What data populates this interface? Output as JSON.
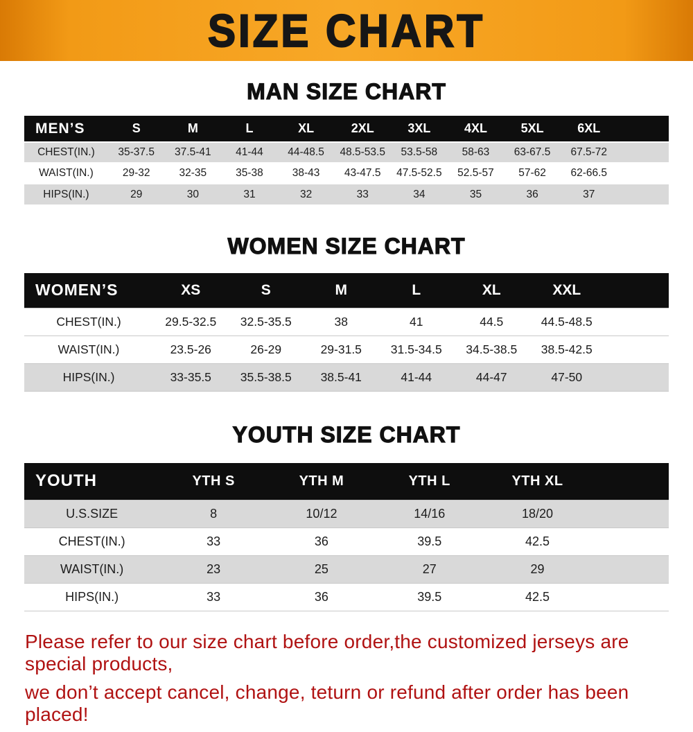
{
  "banner": {
    "title": "SIZE CHART",
    "bg_color": "#f29a16",
    "text_color": "#161616"
  },
  "chart_data": [
    {
      "type": "table",
      "title": "MAN SIZE CHART",
      "corner_label": "MEN’S",
      "columns": [
        "S",
        "M",
        "L",
        "XL",
        "2XL",
        "3XL",
        "4XL",
        "5XL",
        "6XL"
      ],
      "rows": [
        {
          "label": "CHEST(IN.)",
          "values": [
            "35-37.5",
            "37.5-41",
            "41-44",
            "44-48.5",
            "48.5-53.5",
            "53.5-58",
            "58-63",
            "63-67.5",
            "67.5-72"
          ],
          "shaded": true
        },
        {
          "label": "WAIST(IN.)",
          "values": [
            "29-32",
            "32-35",
            "35-38",
            "38-43",
            "43-47.5",
            "47.5-52.5",
            "52.5-57",
            "57-62",
            "62-66.5"
          ],
          "shaded": false
        },
        {
          "label": "HIPS(IN.)",
          "values": [
            "29",
            "30",
            "31",
            "32",
            "33",
            "34",
            "35",
            "36",
            "37"
          ],
          "shaded": true
        }
      ]
    },
    {
      "type": "table",
      "title": "WOMEN SIZE CHART",
      "corner_label": "WOMEN’S",
      "columns": [
        "XS",
        "S",
        "M",
        "L",
        "XL",
        "XXL"
      ],
      "rows": [
        {
          "label": "CHEST(IN.)",
          "values": [
            "29.5-32.5",
            "32.5-35.5",
            "38",
            "41",
            "44.5",
            "44.5-48.5"
          ],
          "shaded": false
        },
        {
          "label": "WAIST(IN.)",
          "values": [
            "23.5-26",
            "26-29",
            "29-31.5",
            "31.5-34.5",
            "34.5-38.5",
            "38.5-42.5"
          ],
          "shaded": false
        },
        {
          "label": "HIPS(IN.)",
          "values": [
            "33-35.5",
            "35.5-38.5",
            "38.5-41",
            "41-44",
            "44-47",
            "47-50"
          ],
          "shaded": true
        }
      ]
    },
    {
      "type": "table",
      "title": "YOUTH SIZE CHART",
      "corner_label": "YOUTH",
      "columns": [
        "YTH S",
        "YTH M",
        "YTH L",
        "YTH XL"
      ],
      "rows": [
        {
          "label": "U.S.SIZE",
          "values": [
            "8",
            "10/12",
            "14/16",
            "18/20"
          ],
          "shaded": true
        },
        {
          "label": "CHEST(IN.)",
          "values": [
            "33",
            "36",
            "39.5",
            "42.5"
          ],
          "shaded": false
        },
        {
          "label": "WAIST(IN.)",
          "values": [
            "23",
            "25",
            "27",
            "29"
          ],
          "shaded": true
        },
        {
          "label": "HIPS(IN.)",
          "values": [
            "33",
            "36",
            "39.5",
            "42.5"
          ],
          "shaded": false
        }
      ]
    }
  ],
  "footer": {
    "line1": "Please refer to our size chart before order,the customized jerseys are special products,",
    "line2": "we don’t accept cancel, change, teturn or refund after order has been placed!",
    "text_color": "#b01212"
  },
  "style": {
    "header_row_bg": "#0e0e0e",
    "shaded_row_bg": "#d9d9d9"
  }
}
